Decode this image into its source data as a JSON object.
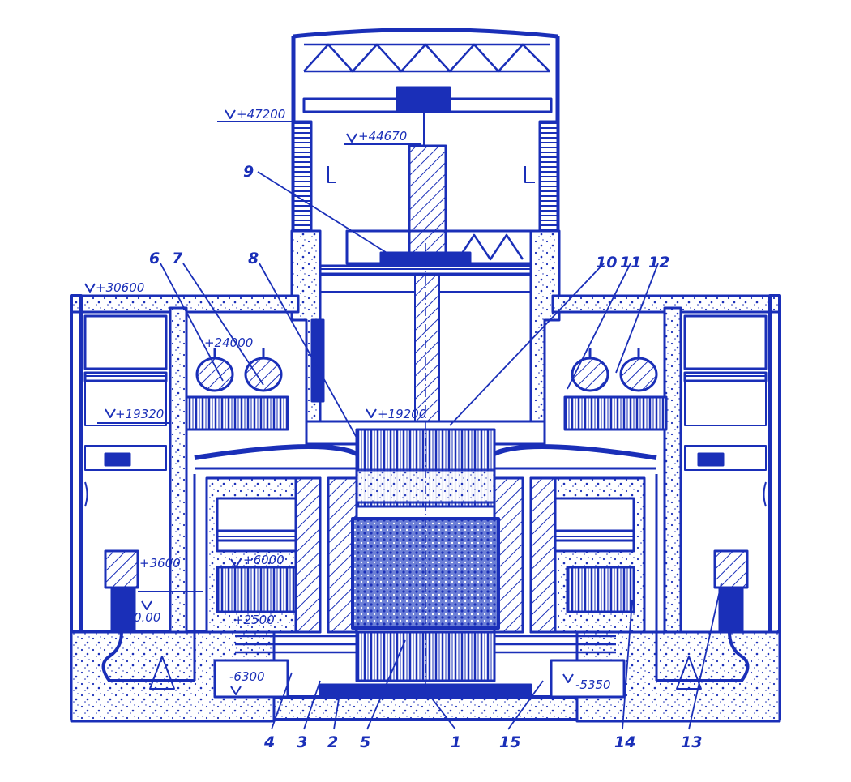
{
  "colors": {
    "ink": "#1a2fb8",
    "paper": "#ffffff",
    "hatch": "#7f8fe0"
  },
  "elevations": {
    "e47200": "+47200",
    "e44670": "+44670",
    "e30600": "+30600",
    "e24000": "+24000",
    "e19320": "+19320",
    "e19200": "+19200",
    "e6000": "+6000",
    "e3600": "+3600",
    "e2500": "+2500",
    "e000": "0.00",
    "em6300": "-6300",
    "em5350": "-5350"
  },
  "labels": {
    "l1": "1",
    "l2": "2",
    "l3": "3",
    "l4": "4",
    "l5": "5",
    "l6": "6",
    "l7": "7",
    "l8": "8",
    "l9": "9",
    "l10": "10",
    "l11": "11",
    "l12": "12",
    "l13": "13",
    "l14": "14",
    "l15": "15"
  }
}
